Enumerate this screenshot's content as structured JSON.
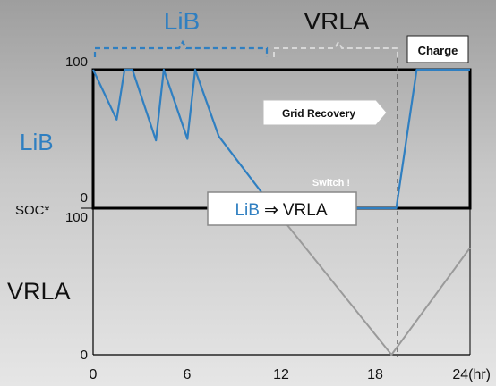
{
  "chart_data": {
    "type": "line",
    "x_ticks": [
      "0",
      "6",
      "12",
      "18",
      "24(hr)"
    ],
    "xlim": [
      0,
      24
    ],
    "panels": [
      {
        "name": "LiB",
        "y_ticks": [
          "0",
          "100"
        ],
        "ylim": [
          0,
          100
        ]
      },
      {
        "name": "VRLA",
        "y_ticks": [
          "0",
          "100"
        ],
        "ylim": [
          0,
          100
        ]
      }
    ],
    "y_axis_label": "SOC*",
    "series": [
      {
        "name": "LiB",
        "panel": "LiB",
        "x": [
          0,
          1.5,
          2,
          2.5,
          4,
          4.5,
          6,
          6.5,
          8,
          11.5,
          19.3,
          20.6,
          24
        ],
        "y": [
          100,
          64,
          100,
          100,
          49,
          100,
          50,
          100,
          52,
          0,
          0,
          100,
          100
        ]
      },
      {
        "name": "VRLA",
        "panel": "VRLA",
        "x": [
          11.5,
          19,
          24
        ],
        "y": [
          100,
          0,
          73
        ]
      }
    ],
    "annotations": {
      "top_lib": "LiB",
      "top_vrla": "VRLA",
      "charge": "Charge",
      "grid_recovery": "Grid Recovery",
      "switch": "Switch !",
      "switch_from": "LiB",
      "switch_arrow": "⇒",
      "switch_to": "VRLA"
    },
    "grid": false
  },
  "colors": {
    "lib": "#2f7fc1",
    "vrla": "#9a9a9a",
    "frame": "#000000"
  }
}
